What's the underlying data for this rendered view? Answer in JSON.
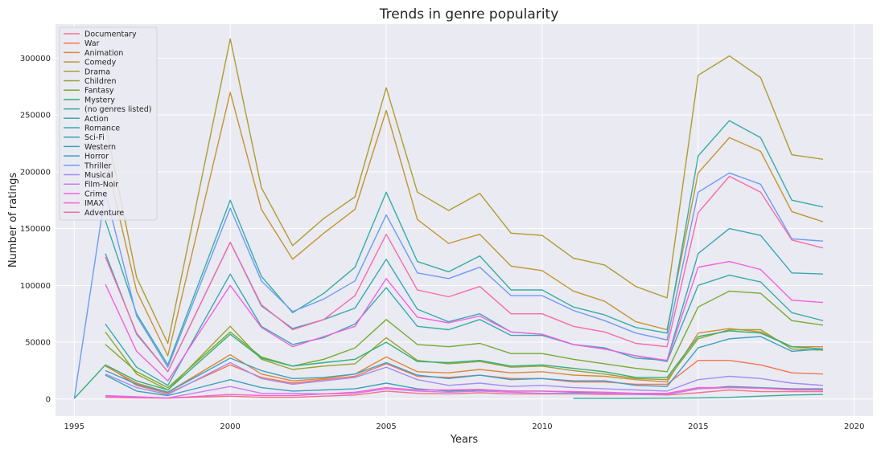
{
  "chart_data": {
    "type": "line",
    "title": "Trends in genre popularity",
    "xlabel": "Years",
    "ylabel": "Number of ratings",
    "xlim": [
      1994.4,
      2020.6
    ],
    "ylim": [
      -15000,
      330000
    ],
    "xticks": [
      1995,
      2000,
      2005,
      2010,
      2015,
      2020
    ],
    "yticks": [
      0,
      50000,
      100000,
      150000,
      200000,
      250000,
      300000
    ],
    "grid": true,
    "background": "#eaeaf2",
    "legend_position": "top-left",
    "series": [
      {
        "name": "Documentary",
        "color": "#f77189",
        "x": [
          1996,
          1997,
          1998,
          2000,
          2001,
          2002,
          2003,
          2004,
          2005,
          2006,
          2007,
          2008,
          2009,
          2010,
          2011,
          2012,
          2013,
          2014,
          2015,
          2016,
          2017,
          2018,
          2019
        ],
        "y": [
          1500,
          1000,
          800,
          2500,
          1500,
          1500,
          2500,
          3500,
          7000,
          5000,
          4500,
          5500,
          4500,
          4500,
          4500,
          4000,
          4000,
          3500,
          5500,
          8000,
          6500,
          6500,
          6500
        ]
      },
      {
        "name": "War",
        "color": "#f7754f",
        "x": [
          1996,
          1997,
          1998,
          2000,
          2001,
          2002,
          2003,
          2004,
          2005,
          2006,
          2007,
          2008,
          2009,
          2010,
          2011,
          2012,
          2013,
          2014,
          2015,
          2016,
          2017,
          2018,
          2019
        ],
        "y": [
          30000,
          12000,
          5000,
          30000,
          19000,
          14000,
          17000,
          20000,
          31000,
          20000,
          19000,
          21000,
          18000,
          18000,
          15000,
          15000,
          13000,
          13000,
          34000,
          34000,
          30000,
          23000,
          22000
        ]
      },
      {
        "name": "Animation",
        "color": "#dc8932",
        "x": [
          1996,
          1997,
          1998,
          2000,
          2001,
          2002,
          2003,
          2004,
          2005,
          2006,
          2007,
          2008,
          2009,
          2010,
          2011,
          2012,
          2013,
          2014,
          2015,
          2016,
          2017,
          2018,
          2019
        ],
        "y": [
          29000,
          14000,
          6000,
          39000,
          22000,
          16000,
          18000,
          22000,
          37000,
          24000,
          23000,
          26000,
          23000,
          24000,
          21000,
          20000,
          17000,
          15000,
          58000,
          62000,
          59000,
          46000,
          46000
        ]
      },
      {
        "name": "Comedy",
        "color": "#c39532",
        "x": [
          1996,
          1997,
          1998,
          2000,
          2001,
          2002,
          2003,
          2004,
          2005,
          2006,
          2007,
          2008,
          2009,
          2010,
          2011,
          2012,
          2013,
          2014,
          2015,
          2016,
          2017,
          2018,
          2019
        ],
        "y": [
          213000,
          95000,
          38000,
          270000,
          167000,
          123000,
          146000,
          167000,
          254000,
          158000,
          137000,
          145000,
          117000,
          113000,
          95000,
          86000,
          68000,
          61000,
          199000,
          230000,
          218000,
          165000,
          156000
        ]
      },
      {
        "name": "Drama",
        "color": "#ae9d31",
        "x": [
          1996,
          1997,
          1998,
          2000,
          2001,
          2002,
          2003,
          2004,
          2005,
          2006,
          2007,
          2008,
          2009,
          2010,
          2011,
          2012,
          2013,
          2014,
          2015,
          2016,
          2017,
          2018,
          2019
        ],
        "y": [
          242000,
          107000,
          49000,
          317000,
          186000,
          135000,
          159000,
          178000,
          274000,
          182000,
          166000,
          181000,
          146000,
          144000,
          124000,
          118000,
          99000,
          89000,
          285000,
          302000,
          283000,
          215000,
          211000
        ]
      },
      {
        "name": "Children",
        "color": "#97a431",
        "x": [
          1996,
          1997,
          1998,
          2000,
          2001,
          2002,
          2003,
          2004,
          2005,
          2006,
          2007,
          2008,
          2009,
          2010,
          2011,
          2012,
          2013,
          2014,
          2015,
          2016,
          2017,
          2018,
          2019
        ],
        "y": [
          59000,
          22000,
          8000,
          64000,
          35000,
          26000,
          29000,
          31000,
          54000,
          34000,
          31000,
          33000,
          28000,
          29000,
          25000,
          22000,
          18000,
          17000,
          53000,
          61000,
          61000,
          44000,
          43000
        ]
      },
      {
        "name": "Fantasy",
        "color": "#77ab31",
        "x": [
          1996,
          1997,
          1998,
          2000,
          2001,
          2002,
          2003,
          2004,
          2005,
          2006,
          2007,
          2008,
          2009,
          2010,
          2011,
          2012,
          2013,
          2014,
          2015,
          2016,
          2017,
          2018,
          2019
        ],
        "y": [
          48000,
          24000,
          10000,
          59000,
          37000,
          29000,
          35000,
          45000,
          70000,
          48000,
          46000,
          49000,
          40000,
          40000,
          35000,
          31000,
          27000,
          24000,
          81000,
          95000,
          93000,
          69000,
          65000
        ]
      },
      {
        "name": "Mystery",
        "color": "#33b07a",
        "x": [
          1995,
          1996,
          1997,
          1998,
          2000,
          2001,
          2002,
          2003,
          2004,
          2005,
          2006,
          2007,
          2008,
          2009,
          2010,
          2011,
          2012,
          2013,
          2014,
          2015,
          2016,
          2017,
          2018,
          2019
        ],
        "y": [
          500,
          30000,
          16000,
          8000,
          57000,
          36000,
          29000,
          32000,
          35000,
          50000,
          33000,
          32000,
          34000,
          29000,
          30000,
          27000,
          24000,
          19000,
          19000,
          55000,
          60000,
          58000,
          46000,
          44000
        ]
      },
      {
        "name": "(no genres listed)",
        "color": "#35ad9c",
        "x": [
          2011,
          2012,
          2013,
          2014,
          2015,
          2016,
          2017,
          2018,
          2019
        ],
        "y": [
          500,
          500,
          500,
          800,
          1000,
          1500,
          2500,
          3500,
          4000
        ]
      },
      {
        "name": "Action",
        "color": "#36ada4",
        "x": [
          1996,
          1997,
          1998,
          2000,
          2001,
          2002,
          2003,
          2004,
          2005,
          2006,
          2007,
          2008,
          2009,
          2010,
          2011,
          2012,
          2013,
          2014,
          2015,
          2016,
          2017,
          2018,
          2019
        ],
        "y": [
          157000,
          75000,
          30000,
          175000,
          108000,
          76000,
          93000,
          116000,
          182000,
          121000,
          112000,
          126000,
          96000,
          96000,
          81000,
          74000,
          63000,
          58000,
          214000,
          245000,
          230000,
          175000,
          169000
        ]
      },
      {
        "name": "Romance",
        "color": "#38aaac",
        "x": [
          1996,
          1997,
          1998,
          2000,
          2001,
          2002,
          2003,
          2004,
          2005,
          2006,
          2007,
          2008,
          2009,
          2010,
          2011,
          2012,
          2013,
          2014,
          2015,
          2016,
          2017,
          2018,
          2019
        ],
        "y": [
          66000,
          28000,
          12000,
          110000,
          64000,
          48000,
          54000,
          66000,
          98000,
          64000,
          61000,
          70000,
          56000,
          56000,
          48000,
          44000,
          38000,
          33000,
          100000,
          109000,
          103000,
          76000,
          69000
        ]
      },
      {
        "name": "Sci-Fi",
        "color": "#39a7b2",
        "x": [
          1996,
          1997,
          1998,
          2000,
          2001,
          2002,
          2003,
          2004,
          2005,
          2006,
          2007,
          2008,
          2009,
          2010,
          2011,
          2012,
          2013,
          2014,
          2015,
          2016,
          2017,
          2018,
          2019
        ],
        "y": [
          128000,
          57000,
          24000,
          138000,
          82000,
          62000,
          70000,
          80000,
          123000,
          79000,
          68000,
          75000,
          59000,
          57000,
          48000,
          45000,
          36000,
          34000,
          128000,
          150000,
          144000,
          111000,
          110000
        ]
      },
      {
        "name": "Western",
        "color": "#3ba3ba",
        "x": [
          1996,
          1997,
          1998,
          2000,
          2001,
          2002,
          2003,
          2004,
          2005,
          2006,
          2007,
          2008,
          2009,
          2010,
          2011,
          2012,
          2013,
          2014,
          2015,
          2016,
          2017,
          2018,
          2019
        ],
        "y": [
          21000,
          7000,
          3000,
          17000,
          10000,
          7000,
          8000,
          9000,
          14000,
          9000,
          7000,
          8000,
          7000,
          7000,
          6000,
          5000,
          5000,
          4000,
          9000,
          11000,
          10000,
          9000,
          9000
        ]
      },
      {
        "name": "Horror",
        "color": "#3d9fc5",
        "x": [
          1996,
          1997,
          1998,
          2000,
          2001,
          2002,
          2003,
          2004,
          2005,
          2006,
          2007,
          2008,
          2009,
          2010,
          2011,
          2012,
          2013,
          2014,
          2015,
          2016,
          2017,
          2018,
          2019
        ],
        "y": [
          25000,
          13000,
          6000,
          36000,
          25000,
          18000,
          19000,
          22000,
          32000,
          21000,
          18000,
          21000,
          17000,
          18000,
          16000,
          16000,
          12000,
          11000,
          45000,
          53000,
          55000,
          42000,
          44000
        ]
      },
      {
        "name": "Thriller",
        "color": "#6e9bf4",
        "x": [
          1995,
          1996,
          1997,
          1998,
          2000,
          2001,
          2002,
          2003,
          2004,
          2005,
          2006,
          2007,
          2008,
          2009,
          2010,
          2011,
          2012,
          2013,
          2014,
          2015,
          2016,
          2017,
          2018,
          2019
        ],
        "y": [
          500,
          182000,
          73000,
          28000,
          168000,
          104000,
          77000,
          88000,
          104000,
          162000,
          111000,
          106000,
          116000,
          91000,
          91000,
          78000,
          69000,
          58000,
          52000,
          182000,
          199000,
          189000,
          141000,
          139000
        ]
      },
      {
        "name": "Musical",
        "color": "#a48cf4",
        "x": [
          1996,
          1997,
          1998,
          2000,
          2001,
          2002,
          2003,
          2004,
          2005,
          2006,
          2007,
          2008,
          2009,
          2010,
          2011,
          2012,
          2013,
          2014,
          2015,
          2016,
          2017,
          2018,
          2019
        ],
        "y": [
          22000,
          10000,
          4000,
          32000,
          18000,
          13000,
          16000,
          19000,
          28000,
          17000,
          12000,
          14000,
          11000,
          12000,
          10000,
          9000,
          8000,
          7000,
          17000,
          20000,
          18000,
          14000,
          12000
        ]
      },
      {
        "name": "Film-Noir",
        "color": "#cc7af4",
        "x": [
          1996,
          1997,
          1998,
          2000,
          2001,
          2002,
          2003,
          2004,
          2005,
          2006,
          2007,
          2008,
          2009,
          2010,
          2011,
          2012,
          2013,
          2014,
          2015,
          2016,
          2017,
          2018,
          2019
        ],
        "y": [
          3000,
          2000,
          1000,
          11000,
          5000,
          5000,
          4500,
          5000,
          9000,
          7000,
          6000,
          7000,
          6000,
          5000,
          5000,
          5000,
          4000,
          4000,
          9000,
          10000,
          9500,
          8000,
          8000
        ]
      },
      {
        "name": "Crime",
        "color": "#f45fe3",
        "x": [
          1996,
          1997,
          1998,
          2000,
          2001,
          2002,
          2003,
          2004,
          2005,
          2006,
          2007,
          2008,
          2009,
          2010,
          2011,
          2012,
          2013,
          2014,
          2015,
          2016,
          2017,
          2018,
          2019
        ],
        "y": [
          101000,
          42000,
          16000,
          100000,
          63000,
          46000,
          55000,
          64000,
          106000,
          72000,
          67000,
          73000,
          59000,
          57000,
          48000,
          44000,
          38000,
          34000,
          116000,
          121000,
          114000,
          87000,
          85000
        ]
      },
      {
        "name": "IMAX",
        "color": "#f565cc",
        "x": [
          1996,
          1997,
          1998,
          2000,
          2001,
          2002,
          2003,
          2004,
          2005,
          2006,
          2007,
          2008,
          2009,
          2010,
          2011,
          2012,
          2013,
          2014,
          2015,
          2016,
          2017,
          2018,
          2019
        ],
        "y": [
          2000,
          1500,
          800,
          4000,
          3000,
          3000,
          4500,
          6000,
          10000,
          8000,
          8000,
          8500,
          7000,
          7000,
          6500,
          6000,
          5000,
          5000,
          10000,
          10000,
          9500,
          8500,
          8000
        ]
      },
      {
        "name": "Adventure",
        "color": "#f66bad",
        "x": [
          1996,
          1997,
          1998,
          2000,
          2001,
          2002,
          2003,
          2004,
          2005,
          2006,
          2007,
          2008,
          2009,
          2010,
          2011,
          2012,
          2013,
          2014,
          2015,
          2016,
          2017,
          2018,
          2019
        ],
        "y": [
          125000,
          58000,
          24000,
          138000,
          83000,
          61000,
          70000,
          91000,
          145000,
          96000,
          90000,
          99000,
          75000,
          75000,
          64000,
          59000,
          49000,
          46000,
          164000,
          196000,
          182000,
          140000,
          133000
        ]
      }
    ]
  }
}
